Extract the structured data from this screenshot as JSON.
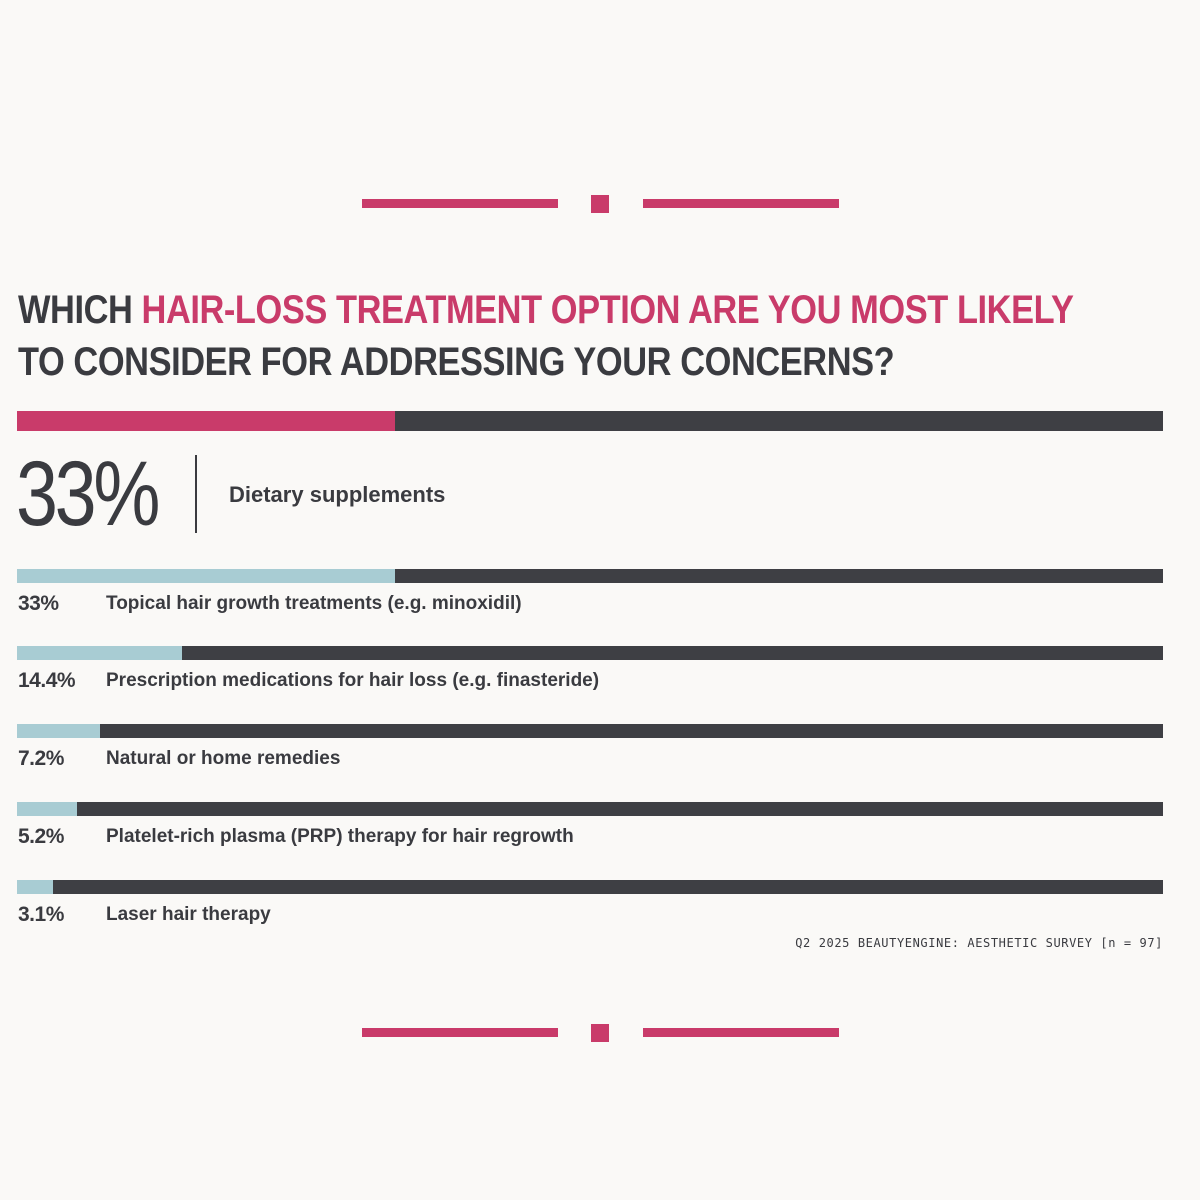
{
  "colors": {
    "accent": "#c93b6a",
    "track": "#3e3f44",
    "fill_light": "#a8ccd3",
    "text": "#3a3b40",
    "background": "#faf9f7"
  },
  "headline": {
    "part1": "WHICH ",
    "part2_accent": "HAIR-LOSS TREATMENT OPTION ARE YOU MOST LIKELY",
    "part3": "TO CONSIDER FOR ADDRESSING YOUR CONCERNS?"
  },
  "footnote": "Q2 2025 BEAUTYENGINE: AESTHETIC SURVEY [n = 97]",
  "chart_data": {
    "type": "bar",
    "orientation": "horizontal",
    "title": "WHICH HAIR-LOSS TREATMENT OPTION ARE YOU MOST LIKELY TO CONSIDER FOR ADDRESSING YOUR CONCERNS?",
    "xlim": [
      0,
      100
    ],
    "grid": false,
    "categories": [
      "Dietary supplements",
      "Topical hair growth treatments (e.g. minoxidil)",
      "Prescription medications for hair loss (e.g. finasteride)",
      "Natural or home remedies",
      "Platelet-rich plasma (PRP) therapy for hair regrowth",
      "Laser hair therapy"
    ],
    "values": [
      33,
      33,
      14.4,
      7.2,
      5.2,
      3.1
    ],
    "value_labels": [
      "33%",
      "33%",
      "14.4%",
      "7.2%",
      "5.2%",
      "3.1%"
    ]
  }
}
